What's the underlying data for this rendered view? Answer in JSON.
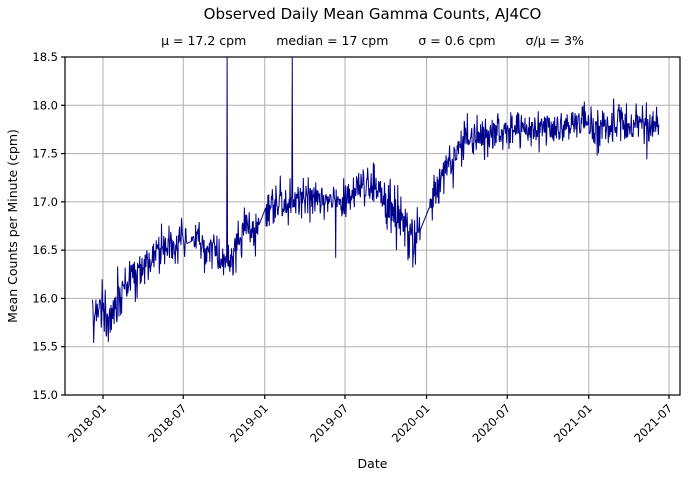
{
  "title": "Observed Daily Mean Gamma Counts, AJ4CO",
  "stats": [
    "μ = 17.2 cpm",
    "median = 17 cpm",
    "σ = 0.6 cpm",
    "σ/μ = 3%"
  ],
  "chart_data": {
    "type": "line",
    "series_name": "daily mean gamma counts",
    "title": "Observed Daily Mean Gamma Counts, AJ4CO",
    "subtitle_stats": {
      "mean_cpm": 17.2,
      "median_cpm": 17,
      "sigma_cpm": 0.6,
      "sigma_over_mu_pct": 3
    },
    "xlabel": "Date",
    "ylabel": "Mean Counts per Minute (cpm)",
    "x_tick_labels": [
      "2018-01",
      "2018-07",
      "2019-01",
      "2019-07",
      "2020-01",
      "2020-07",
      "2021-01",
      "2021-07"
    ],
    "y_tick_labels": [
      "15.0",
      "15.5",
      "16.0",
      "16.5",
      "17.0",
      "17.5",
      "18.0",
      "18.5"
    ],
    "ylim": [
      15.0,
      18.5
    ],
    "xlim": [
      "2017-10-07",
      "2021-07-26"
    ],
    "grid": true,
    "legend": "none",
    "line_color": "#00008B",
    "grid_color": "#b0b0b0",
    "spine_color": "#000000",
    "data_start": "2017-12-08",
    "data_end": "2021-06-08",
    "trend": [
      [
        "2017-12-08",
        15.85
      ],
      [
        "2018-01-01",
        15.92
      ],
      [
        "2018-01-14",
        15.75
      ],
      [
        "2018-02-01",
        15.98
      ],
      [
        "2018-03-01",
        16.18
      ],
      [
        "2018-04-01",
        16.32
      ],
      [
        "2018-05-01",
        16.44
      ],
      [
        "2018-06-01",
        16.5
      ],
      [
        "2018-06-20",
        16.6
      ],
      [
        "2018-07-10",
        16.57
      ],
      [
        "2018-08-01",
        16.62
      ],
      [
        "2018-08-20",
        16.5
      ],
      [
        "2018-09-10",
        16.55
      ],
      [
        "2018-09-25",
        16.42
      ],
      [
        "2018-10-08",
        16.3
      ],
      [
        "2018-10-20",
        16.45
      ],
      [
        "2018-11-05",
        16.6
      ],
      [
        "2018-11-20",
        16.8
      ],
      [
        "2018-12-05",
        16.65
      ],
      [
        "2018-12-18",
        16.75
      ],
      [
        "2019-01-04",
        16.95
      ],
      [
        "2019-02-01",
        16.95
      ],
      [
        "2019-03-01",
        17.0
      ],
      [
        "2019-04-01",
        17.08
      ],
      [
        "2019-05-01",
        17.05
      ],
      [
        "2019-06-10",
        16.98
      ],
      [
        "2019-07-01",
        17.05
      ],
      [
        "2019-08-01",
        17.12
      ],
      [
        "2019-08-25",
        17.15
      ],
      [
        "2019-09-15",
        17.08
      ],
      [
        "2019-10-05",
        17.0
      ],
      [
        "2019-10-25",
        16.85
      ],
      [
        "2019-11-15",
        16.7
      ],
      [
        "2019-12-03",
        16.55
      ],
      [
        "2019-12-17",
        16.7
      ],
      [
        "2020-01-08",
        16.95
      ],
      [
        "2020-02-01",
        17.2
      ],
      [
        "2020-02-20",
        17.4
      ],
      [
        "2020-03-10",
        17.55
      ],
      [
        "2020-04-01",
        17.65
      ],
      [
        "2020-05-01",
        17.7
      ],
      [
        "2020-07-01",
        17.73
      ],
      [
        "2020-09-01",
        17.76
      ],
      [
        "2020-11-01",
        17.79
      ],
      [
        "2021-01-01",
        17.8
      ],
      [
        "2021-03-01",
        17.82
      ],
      [
        "2021-05-01",
        17.8
      ],
      [
        "2021-06-08",
        17.8
      ]
    ],
    "noise_sigma_default": 0.11,
    "noise_segments": [
      {
        "from": "2017-12-08",
        "to": "2018-04-01",
        "sigma": 0.12
      },
      {
        "from": "2019-10-01",
        "to": "2020-01-20",
        "sigma": 0.14
      },
      {
        "from": "2020-04-01",
        "to": "2021-06-08",
        "sigma": 0.095
      }
    ],
    "outliers": [
      {
        "date": "2018-10-08",
        "value": 19.5,
        "clipped_at_top": true
      },
      {
        "date": "2019-03-04",
        "value": 19.5,
        "clipped_at_top": true
      },
      {
        "date": "2018-01-13",
        "value": 15.55
      },
      {
        "date": "2019-06-10",
        "value": 16.42
      },
      {
        "date": "2019-10-25",
        "value": 16.5
      },
      {
        "date": "2019-12-01",
        "value": 16.32
      },
      {
        "date": "2021-01-20",
        "value": 17.48
      },
      {
        "date": "2021-05-12",
        "value": 17.44
      }
    ],
    "gaps_linear_interp": [
      [
        "2018-07-08",
        "2018-07-20"
      ],
      [
        "2018-12-18",
        "2019-01-04"
      ],
      [
        "2019-12-17",
        "2020-01-08"
      ]
    ]
  }
}
